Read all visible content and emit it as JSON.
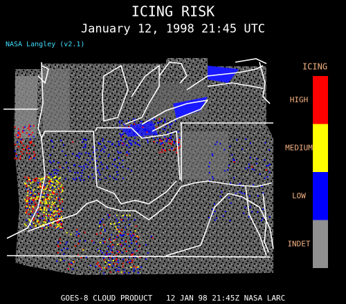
{
  "header": {
    "title": "ICING RISK",
    "subtitle": "January 12, 1998 21:45 UTC",
    "source": "NASA Langley (v2.1)"
  },
  "legend": {
    "title": "ICING",
    "items": [
      {
        "label": "HIGH",
        "color": "#ff0000"
      },
      {
        "label": "MEDIUM",
        "color": "#ffff00"
      },
      {
        "label": "LOW",
        "color": "#0000ff"
      },
      {
        "label": "INDET",
        "color": "#909090"
      }
    ]
  },
  "footer": "GOES-8 CLOUD PRODUCT   12 JAN 98 21:45Z NASA LARC"
}
